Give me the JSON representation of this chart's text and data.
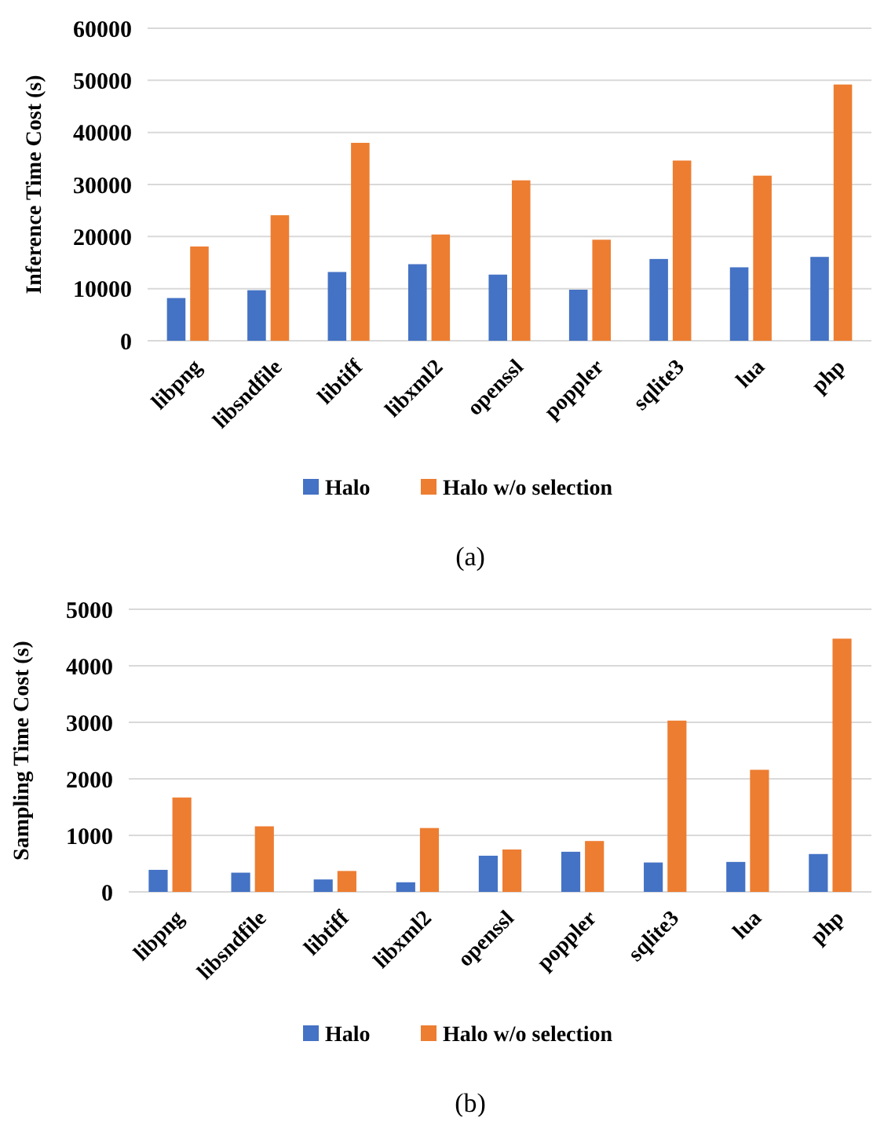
{
  "chart_data": [
    {
      "type": "bar",
      "ylabel": "Inference Time Cost (s)",
      "categories": [
        "libpng",
        "libsndfile",
        "libtiff",
        "libxml2",
        "openssl",
        "poppler",
        "sqlite3",
        "lua",
        "php"
      ],
      "series": [
        {
          "name": "Halo",
          "color": "#4472c4",
          "values": [
            8200,
            9700,
            13200,
            14700,
            12700,
            9800,
            15700,
            14100,
            16100
          ]
        },
        {
          "name": "Halo w/o selection",
          "color": "#ed7d31",
          "values": [
            18100,
            24100,
            38000,
            20400,
            30800,
            19400,
            34600,
            31700,
            49200
          ]
        }
      ],
      "ylim": [
        0,
        60000
      ],
      "yticks": [
        0,
        10000,
        20000,
        30000,
        40000,
        50000,
        60000
      ],
      "grid": "y",
      "legend": "bottom",
      "annotations": [
        "(a)"
      ]
    },
    {
      "type": "bar",
      "ylabel": "Sampling Time Cost (s)",
      "categories": [
        "libpng",
        "libsndfile",
        "libtiff",
        "libxml2",
        "openssl",
        "poppler",
        "sqlite3",
        "lua",
        "php"
      ],
      "series": [
        {
          "name": "Halo",
          "color": "#4472c4",
          "values": [
            390,
            340,
            220,
            170,
            640,
            710,
            520,
            530,
            670
          ]
        },
        {
          "name": "Halo w/o selection",
          "color": "#ed7d31",
          "values": [
            1670,
            1160,
            370,
            1130,
            750,
            900,
            3030,
            2160,
            4480
          ]
        }
      ],
      "ylim": [
        0,
        5000
      ],
      "yticks": [
        0,
        1000,
        2000,
        3000,
        4000,
        5000
      ],
      "grid": "y",
      "legend": "bottom",
      "annotations": [
        "(b)"
      ]
    }
  ]
}
